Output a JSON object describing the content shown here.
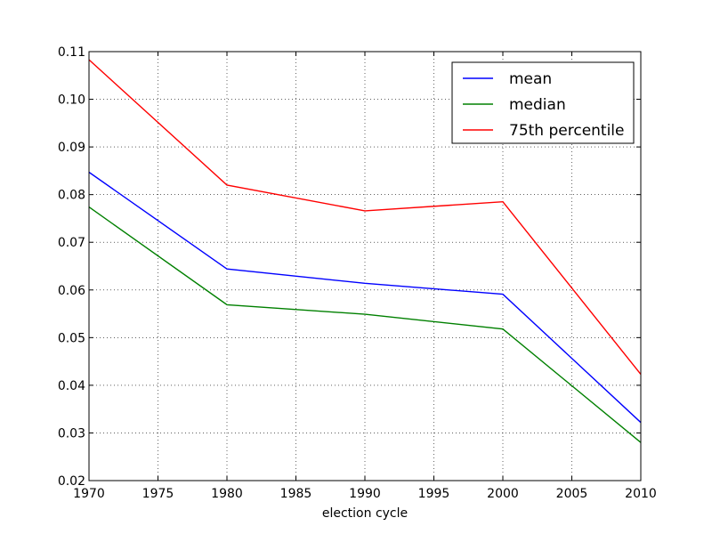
{
  "chart_data": {
    "type": "line",
    "title": "",
    "xlabel": "election cycle",
    "ylabel": "",
    "xlim": [
      1970,
      2010
    ],
    "ylim": [
      0.02,
      0.11
    ],
    "x_ticks": [
      "1970",
      "1975",
      "1980",
      "1985",
      "1990",
      "1995",
      "2000",
      "2005",
      "2010"
    ],
    "y_ticks": [
      "0.02",
      "0.03",
      "0.04",
      "0.05",
      "0.06",
      "0.07",
      "0.08",
      "0.09",
      "0.10",
      "0.11"
    ],
    "grid": true,
    "legend_position": "top-right",
    "x": [
      1970,
      1980,
      1990,
      2000,
      2010
    ],
    "series": [
      {
        "name": "mean",
        "color": "#0000ff",
        "values": [
          0.0847,
          0.0644,
          0.0614,
          0.0591,
          0.0322
        ]
      },
      {
        "name": "median",
        "color": "#008000",
        "values": [
          0.0774,
          0.0569,
          0.0549,
          0.0518,
          0.028
        ]
      },
      {
        "name": "75th percentile",
        "color": "#ff0000",
        "values": [
          0.1083,
          0.082,
          0.0766,
          0.0785,
          0.0423
        ]
      }
    ]
  }
}
